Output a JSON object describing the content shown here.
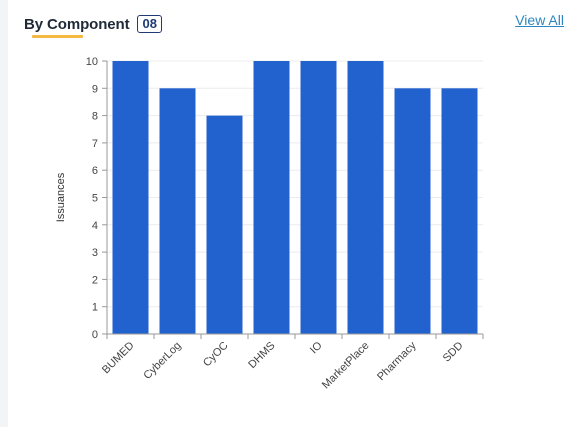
{
  "header": {
    "title": "By Component",
    "count": "08",
    "view_all_label": "View All"
  },
  "colors": {
    "bar": "#2262cf",
    "accent": "#f5b942",
    "link": "#2e86c1"
  },
  "chart_data": {
    "type": "bar",
    "categories": [
      "BUMED",
      "CyberLog",
      "CyOC",
      "DHMS",
      "IO",
      "MarketPlace",
      "Pharmacy",
      "SDD"
    ],
    "values": [
      10,
      9,
      8,
      10,
      10,
      10,
      9,
      9
    ],
    "ylabel": "Issuances",
    "ylim": [
      0,
      10
    ],
    "yticks": [
      0,
      1,
      2,
      3,
      4,
      5,
      6,
      7,
      8,
      9,
      10
    ],
    "grid": true,
    "legend": "none"
  }
}
